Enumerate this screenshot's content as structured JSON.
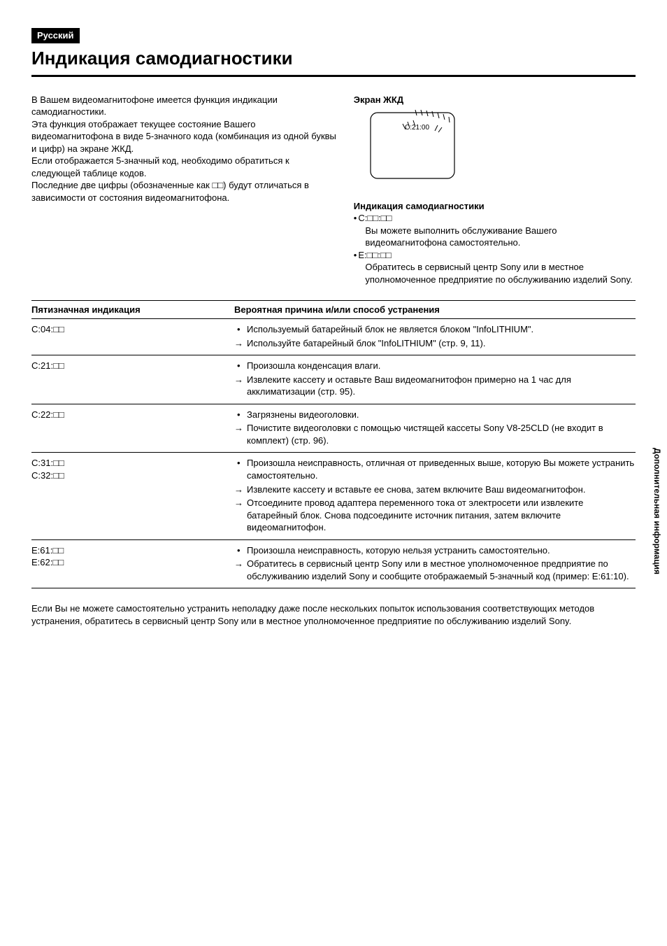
{
  "lang_tag": "Русский",
  "title": "Индикация самодиагностики",
  "intro": [
    "В Вашем видеомагнитофоне имеется функция индикации самодиагностики.",
    "Эта функция отображает текущее состояние Вашего видеомагнитофона в виде 5-значного кода (комбинация из одной буквы и цифр) на экране ЖКД.",
    "Если отображается 5-значный код, необходимо обратиться к следующей таблице кодов.",
    "Последние две цифры (обозначенные как □□) будут отличаться в зависимости от состояния видеомагнитофона."
  ],
  "lcd_label": "Экран ЖКД",
  "lcd_code_sample": "C:21:00",
  "right_title": "Индикация самодиагностики",
  "right_items": [
    {
      "code": "C:□□:□□",
      "desc": "Вы можете выполнить обслуживание Вашего видеомагнитофона самостоятельно."
    },
    {
      "code": "E:□□:□□",
      "desc": "Обратитесь в сервисный центр Sony или в местное уполномоченное предприятие по обслуживанию изделий Sony."
    }
  ],
  "table": {
    "head_code": "Пятизначная индикация",
    "head_cause": "Вероятная причина и/или способ устранения",
    "rows": [
      {
        "codes": [
          "C:04:□□"
        ],
        "items": [
          {
            "type": "cause",
            "text": "Используемый батарейный блок не является блоком \"InfoLITHIUM\"."
          },
          {
            "type": "action",
            "text": "Используйте батарейный блок \"InfoLITHIUM\" (стр. 9, 11)."
          }
        ]
      },
      {
        "codes": [
          "C:21:□□"
        ],
        "items": [
          {
            "type": "cause",
            "text": "Произошла конденсация влаги."
          },
          {
            "type": "action",
            "text": "Извлеките кассету и оставьте Ваш видеомагнитофон примерно на 1 час для акклиматизации (стр. 95)."
          }
        ]
      },
      {
        "codes": [
          "C:22:□□"
        ],
        "items": [
          {
            "type": "cause",
            "text": "Загрязнены видеоголовки."
          },
          {
            "type": "action",
            "text": "Почистите видеоголовки с помощью чистящей кассеты Sony V8-25CLD (не входит в комплект) (стр. 96)."
          }
        ]
      },
      {
        "codes": [
          "C:31:□□",
          "C:32:□□"
        ],
        "items": [
          {
            "type": "cause",
            "text": "Произошла неисправность, отличная от приведенных выше, которую Вы можете устранить самостоятельно."
          },
          {
            "type": "action",
            "text": "Извлеките кассету и вставьте ее снова, затем включите Ваш видеомагнитофон."
          },
          {
            "type": "action",
            "text": "Отсоедините провод адаптера переменного тока от электросети или извлеките батарейный блок. Снова подсоедините источник питания, затем включите видеомагнитофон."
          }
        ]
      },
      {
        "codes": [
          "E:61:□□",
          "E:62:□□"
        ],
        "items": [
          {
            "type": "cause",
            "text": "Произошла неисправность, которую нельзя устранить самостоятельно."
          },
          {
            "type": "action",
            "text": "Обратитесь в сервисный центр Sony или в местное уполномоченное предприятие по обслуживанию изделий Sony и сообщите отображаемый 5-значный код (пример: E:61:10)."
          }
        ]
      }
    ]
  },
  "footer": "Если Вы не можете самостоятельно устранить неполадку даже после нескольких попыток использования соответствующих методов устранения, обратитесь в сервисный центр Sony или в местное уполномоченное предприятие по обслуживанию изделий Sony.",
  "side_label": "Дополнительная информация",
  "colors": {
    "text": "#000000",
    "bg": "#ffffff",
    "tab": "#b8b8b8"
  }
}
